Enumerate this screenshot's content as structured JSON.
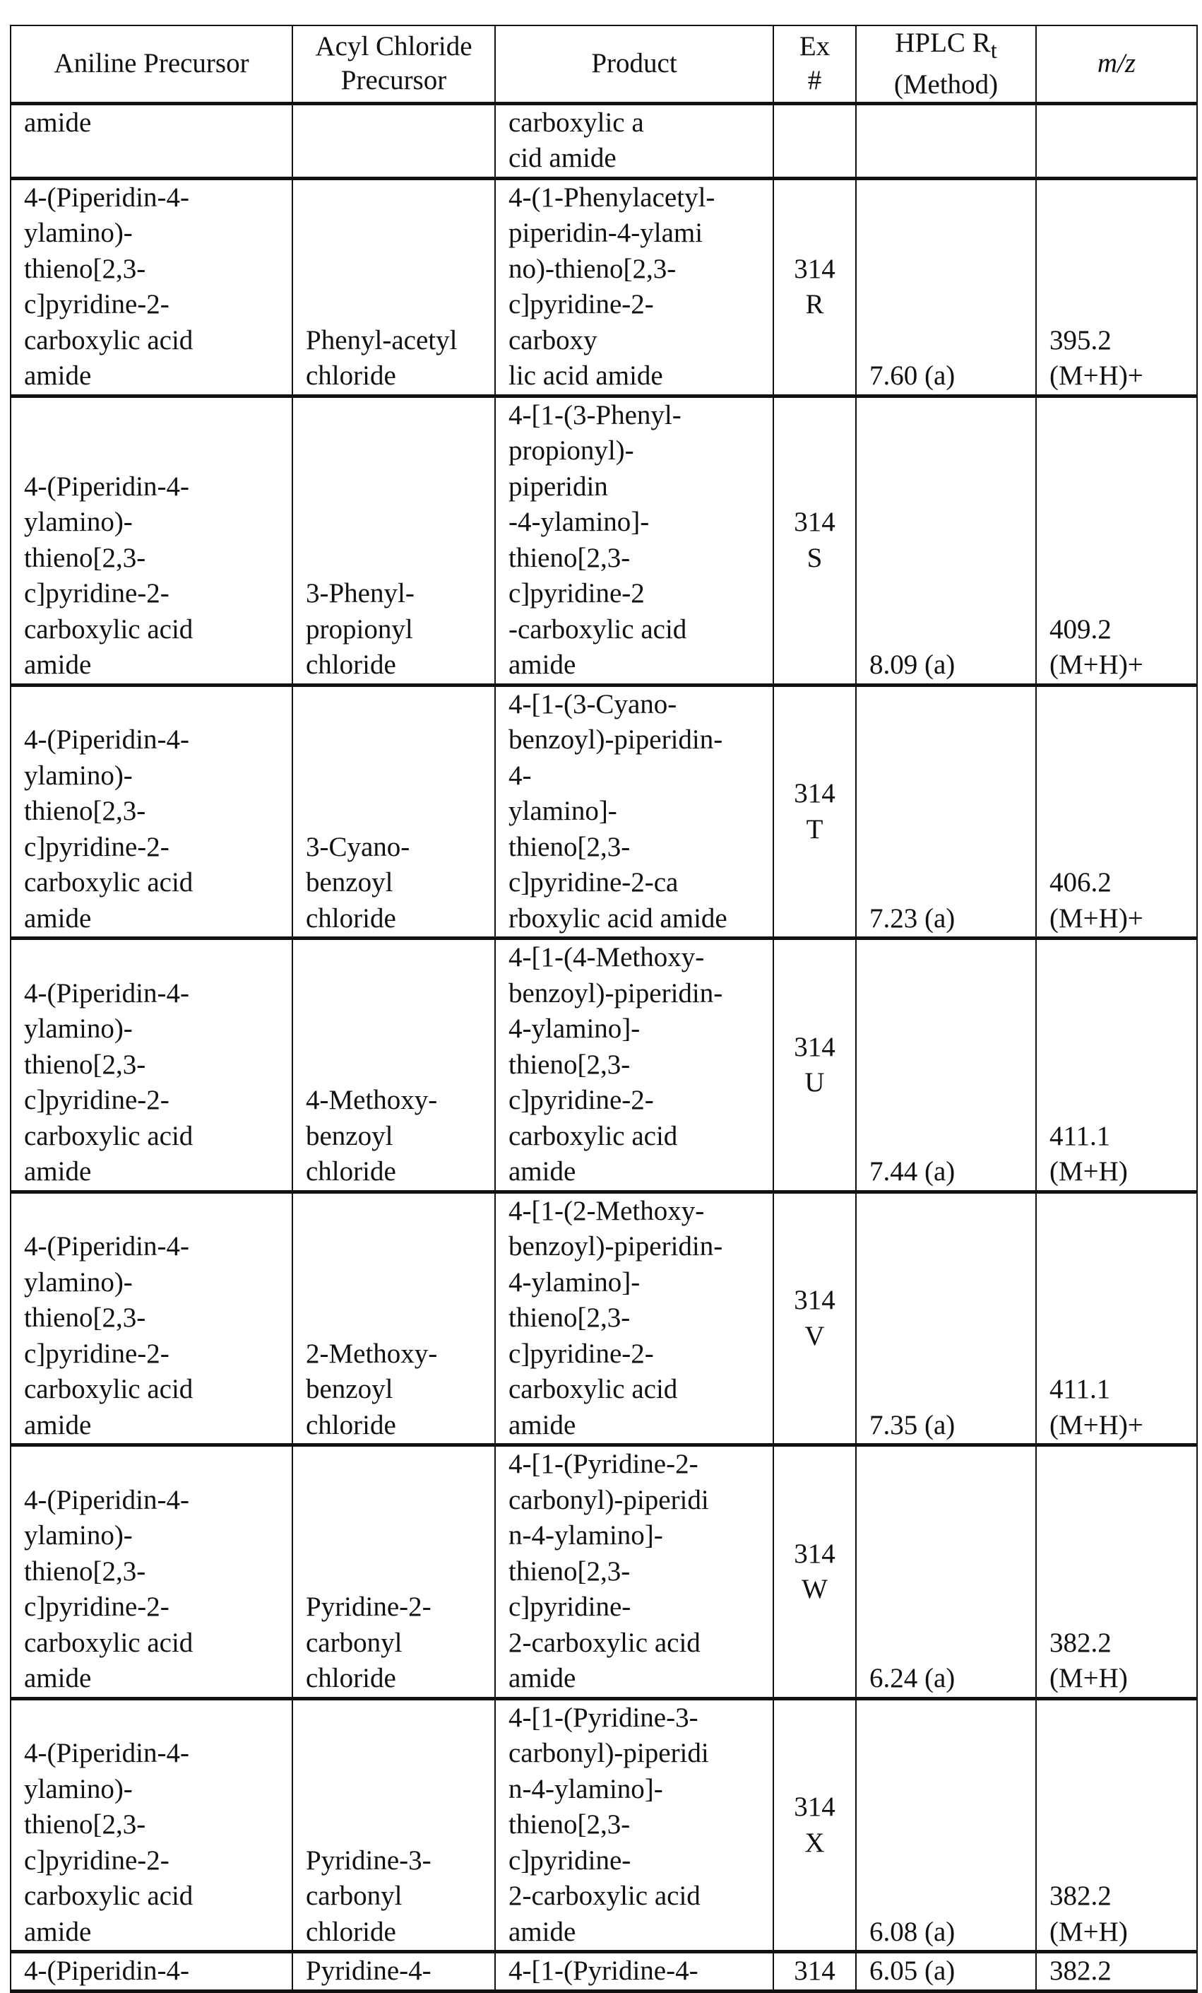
{
  "table": {
    "headers": {
      "aniline": "Aniline Precursor",
      "acyl": "Acyl Chloride\nPrecursor",
      "product": "Product",
      "ex": "Ex\n#",
      "hplc_main": "HPLC R",
      "hplc_sub": "t",
      "hplc_method": "(Method)",
      "mz": "m/z"
    },
    "rows": [
      {
        "aniline": "amide",
        "acyl": "",
        "product": "carboxylic a\ncid amide",
        "ex": "",
        "hplc": "",
        "mz": "",
        "style": "cont"
      },
      {
        "aniline": "4-(Piperidin-4-\nylamino)-\nthieno[2,3-\nc]pyridine-2-\ncarboxylic acid\namide",
        "acyl": "Phenyl-acetyl\nchloride",
        "product": "4-(1-Phenylacetyl-\npiperidin-4-ylami\nno)-thieno[2,3-\nc]pyridine-2-\ncarboxy\nlic acid amide",
        "ex": "314\nR",
        "hplc": "7.60 (a)",
        "mz": "395.2\n(M+H)+"
      },
      {
        "aniline": "4-(Piperidin-4-\nylamino)-\nthieno[2,3-\nc]pyridine-2-\ncarboxylic acid\namide",
        "acyl": "3-Phenyl-\npropionyl\nchloride",
        "product": "4-[1-(3-Phenyl-\npropionyl)-\npiperidin\n-4-ylamino]-\nthieno[2,3-\nc]pyridine-2\n-carboxylic acid\namide",
        "ex": "314\nS",
        "hplc": "8.09 (a)",
        "mz": "409.2\n(M+H)+"
      },
      {
        "aniline": "4-(Piperidin-4-\nylamino)-\nthieno[2,3-\nc]pyridine-2-\ncarboxylic acid\namide",
        "acyl": "3-Cyano-\nbenzoyl\nchloride",
        "product": "4-[1-(3-Cyano-\nbenzoyl)-piperidin-\n4-\nylamino]-\nthieno[2,3-\nc]pyridine-2-ca\nrboxylic acid amide",
        "ex": "314\nT",
        "hplc": "7.23 (a)",
        "mz": "406.2\n(M+H)+"
      },
      {
        "aniline": "4-(Piperidin-4-\nylamino)-\nthieno[2,3-\nc]pyridine-2-\ncarboxylic acid\namide",
        "acyl": "4-Methoxy-\nbenzoyl\nchloride",
        "product": "4-[1-(4-Methoxy-\nbenzoyl)-piperidin-\n4-ylamino]-\nthieno[2,3-\nc]pyridine-2-\ncarboxylic acid\namide",
        "ex": "314\nU",
        "hplc": "7.44 (a)",
        "mz": "411.1\n(M+H)"
      },
      {
        "aniline": "4-(Piperidin-4-\nylamino)-\nthieno[2,3-\nc]pyridine-2-\ncarboxylic acid\namide",
        "acyl": "2-Methoxy-\nbenzoyl\nchloride",
        "product": "4-[1-(2-Methoxy-\nbenzoyl)-piperidin-\n4-ylamino]-\nthieno[2,3-\nc]pyridine-2-\ncarboxylic acid\namide",
        "ex": "314\nV",
        "hplc": "7.35 (a)",
        "mz": "411.1\n(M+H)+"
      },
      {
        "aniline": "4-(Piperidin-4-\nylamino)-\nthieno[2,3-\nc]pyridine-2-\ncarboxylic acid\namide",
        "acyl": "Pyridine-2-\ncarbonyl\nchloride",
        "product": "4-[1-(Pyridine-2-\ncarbonyl)-piperidi\nn-4-ylamino]-\nthieno[2,3-\nc]pyridine-\n2-carboxylic acid\namide",
        "ex": "314\nW",
        "hplc": "6.24 (a)",
        "mz": "382.2\n(M+H)"
      },
      {
        "aniline": "4-(Piperidin-4-\nylamino)-\nthieno[2,3-\nc]pyridine-2-\ncarboxylic acid\namide",
        "acyl": "Pyridine-3-\ncarbonyl\nchloride",
        "product": "4-[1-(Pyridine-3-\ncarbonyl)-piperidi\nn-4-ylamino]-\nthieno[2,3-\nc]pyridine-\n2-carboxylic acid\namide",
        "ex": "314\nX",
        "hplc": "6.08 (a)",
        "mz": "382.2\n(M+H)"
      },
      {
        "aniline": "4-(Piperidin-4-",
        "acyl": "Pyridine-4-",
        "product": "4-[1-(Pyridine-4-",
        "ex": "314",
        "hplc": "6.05 (a)",
        "mz": "382.2",
        "style": "top"
      }
    ]
  }
}
